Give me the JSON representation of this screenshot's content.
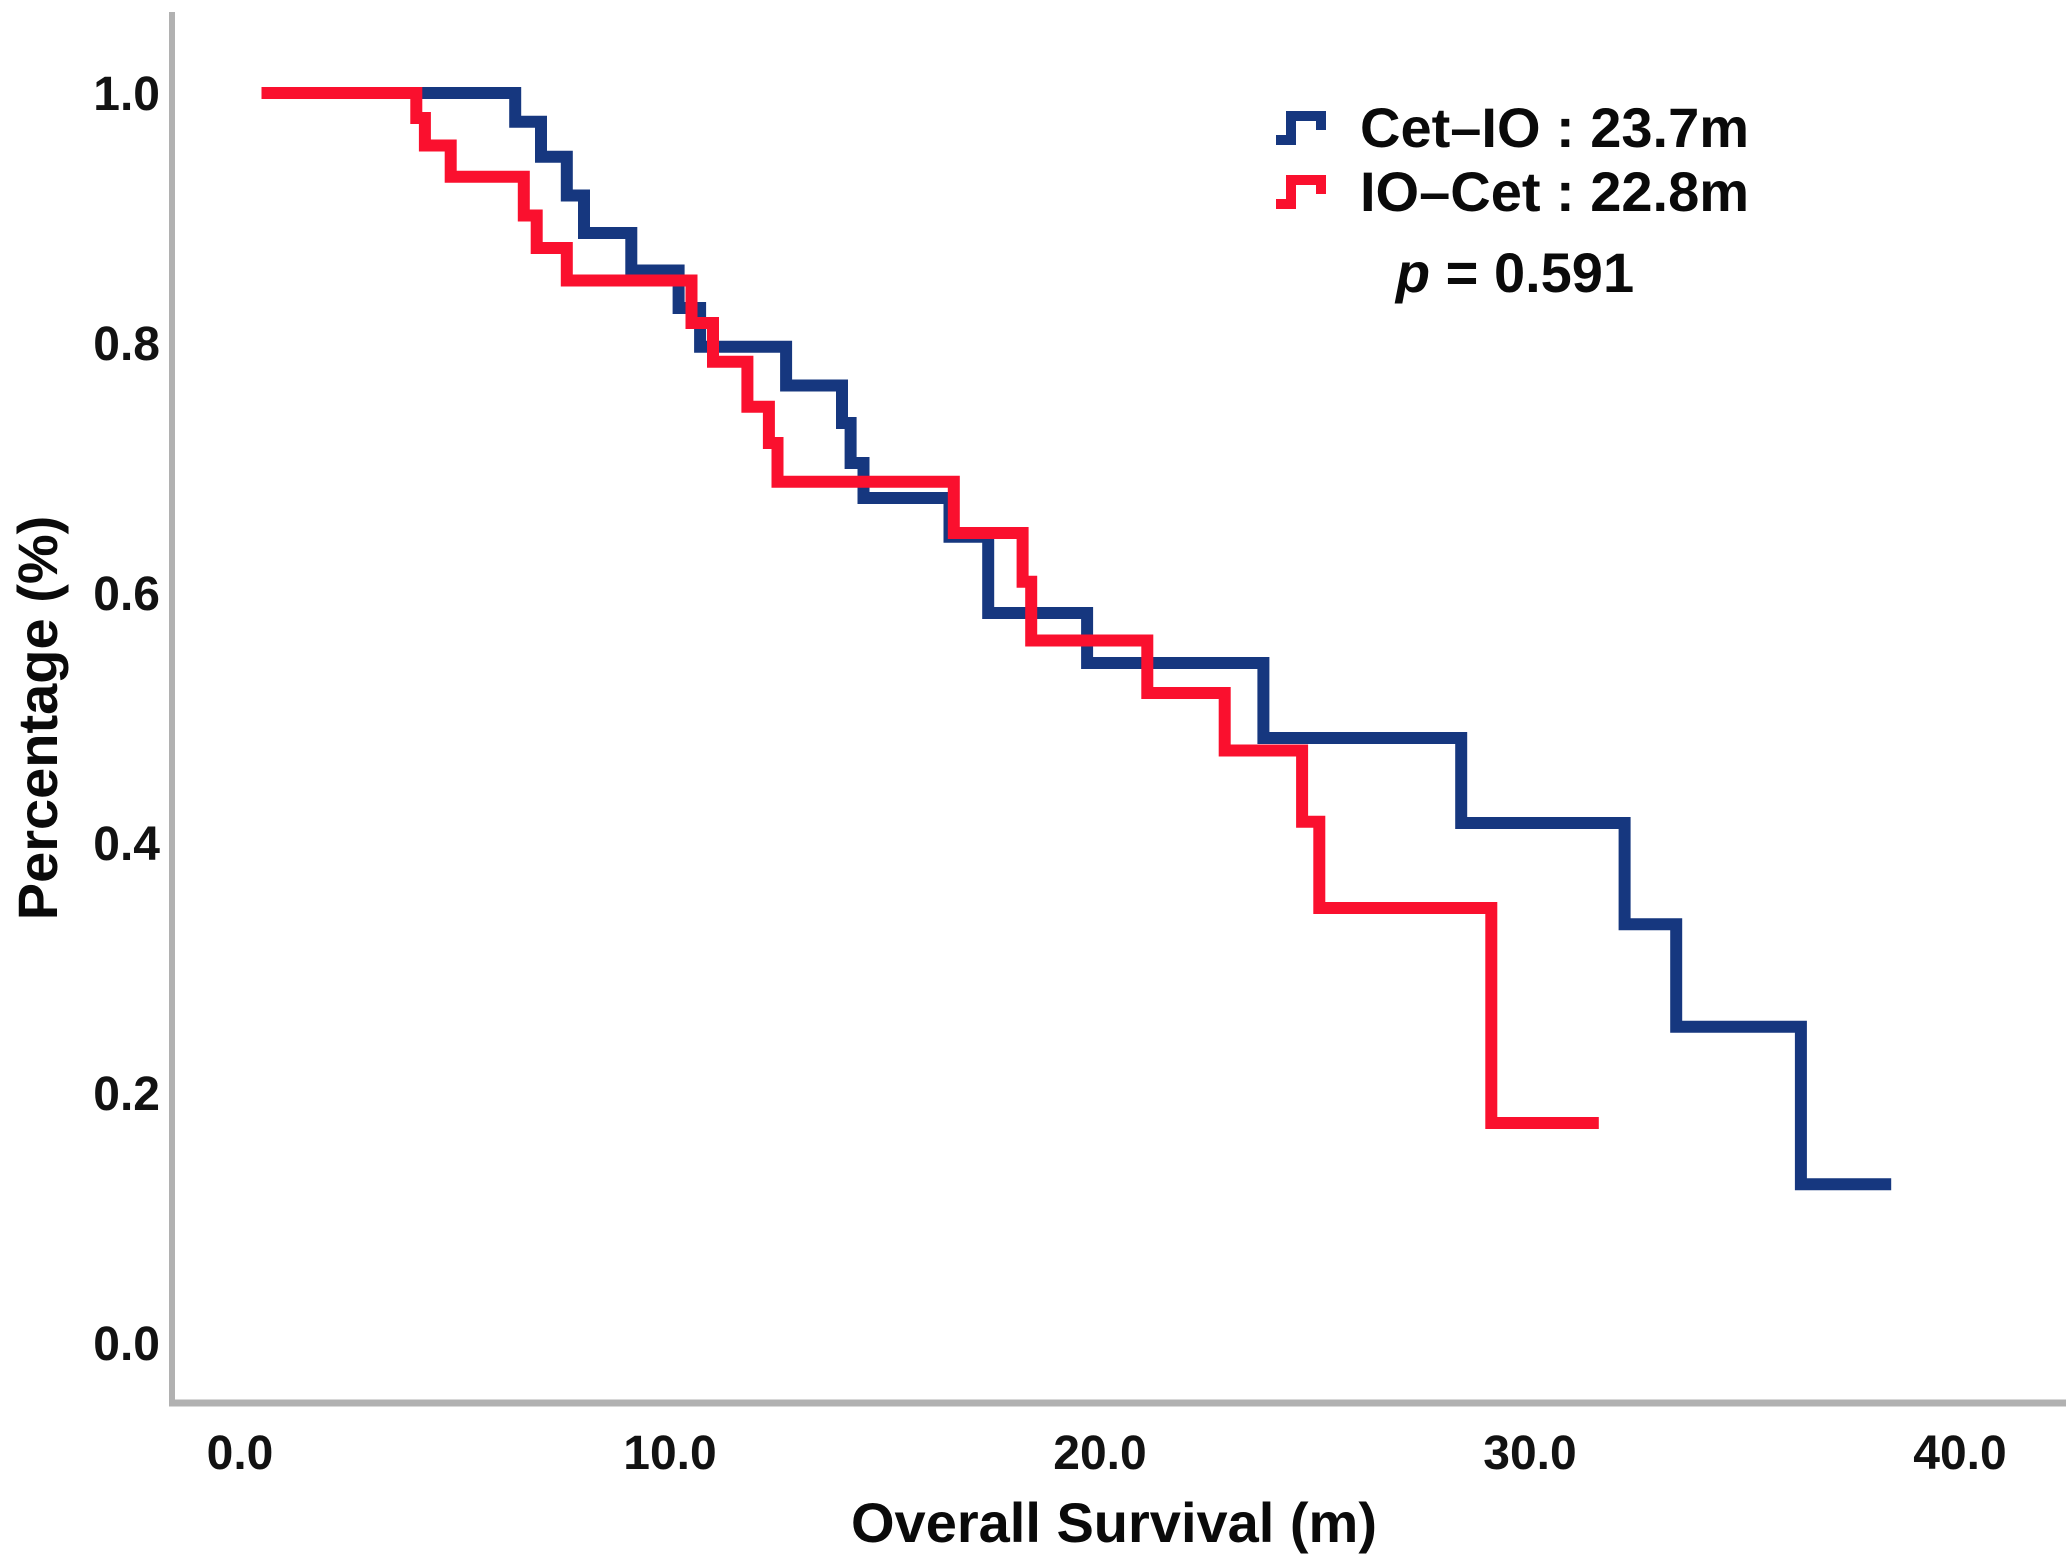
{
  "chart_data": {
    "type": "line",
    "subtype": "kaplan-meier-step-survival",
    "title": "",
    "xlabel": "Overall Survival (m)",
    "ylabel": "Percentage (%)",
    "xlim": [
      0,
      40
    ],
    "ylim": [
      0.0,
      1.0
    ],
    "grid": false,
    "axis_color": "#B1B1B1",
    "xticks": {
      "values": [
        0,
        10,
        20,
        30,
        40
      ],
      "labels": [
        "0.0",
        "10.0",
        "20.0",
        "30.0",
        "40.0"
      ]
    },
    "yticks": {
      "values": [
        0.0,
        0.2,
        0.4,
        0.6,
        0.8,
        1.0
      ],
      "labels": [
        "0.0",
        "0.2",
        "0.4",
        "0.6",
        "0.8",
        "1.0"
      ]
    },
    "legend": {
      "position": "top-right",
      "entries": [
        {
          "id": "cet-io",
          "label": "Cet–IO : 23.7m",
          "color": "#16377F"
        },
        {
          "id": "io-cet",
          "label": "IO–Cet : 22.8m",
          "color": "#FA102E"
        }
      ],
      "p_symbol": "p",
      "p_value_text": " = 0.591"
    },
    "series": [
      {
        "id": "cet-io",
        "name": "Cet-IO",
        "median_months_label": "23.7m",
        "color": "#16377F",
        "points": [
          [
            0.5,
            1.0
          ],
          [
            6.4,
            0.977
          ],
          [
            7.0,
            0.949
          ],
          [
            7.6,
            0.918
          ],
          [
            8.0,
            0.888
          ],
          [
            9.1,
            0.858
          ],
          [
            10.2,
            0.828
          ],
          [
            10.7,
            0.797
          ],
          [
            12.7,
            0.766
          ],
          [
            14.0,
            0.736
          ],
          [
            14.2,
            0.704
          ],
          [
            14.5,
            0.676
          ],
          [
            16.5,
            0.645
          ],
          [
            17.4,
            0.584
          ],
          [
            19.7,
            0.544
          ],
          [
            23.8,
            0.484
          ],
          [
            28.4,
            0.416
          ],
          [
            32.2,
            0.335
          ],
          [
            33.4,
            0.253
          ],
          [
            36.3,
            0.127
          ],
          [
            38.4,
            0.127
          ]
        ]
      },
      {
        "id": "io-cet",
        "name": "IO-Cet",
        "median_months_label": "22.8m",
        "color": "#FA102E",
        "points": [
          [
            0.5,
            1.0
          ],
          [
            4.1,
            0.98
          ],
          [
            4.3,
            0.958
          ],
          [
            4.9,
            0.933
          ],
          [
            6.6,
            0.902
          ],
          [
            6.9,
            0.876
          ],
          [
            7.6,
            0.85
          ],
          [
            10.5,
            0.816
          ],
          [
            11.0,
            0.785
          ],
          [
            11.8,
            0.749
          ],
          [
            12.3,
            0.72
          ],
          [
            12.5,
            0.689
          ],
          [
            16.6,
            0.648
          ],
          [
            18.2,
            0.609
          ],
          [
            18.4,
            0.562
          ],
          [
            21.1,
            0.52
          ],
          [
            22.9,
            0.474
          ],
          [
            24.7,
            0.417
          ],
          [
            25.1,
            0.348
          ],
          [
            29.1,
            0.176
          ],
          [
            31.6,
            0.176
          ]
        ]
      }
    ]
  }
}
